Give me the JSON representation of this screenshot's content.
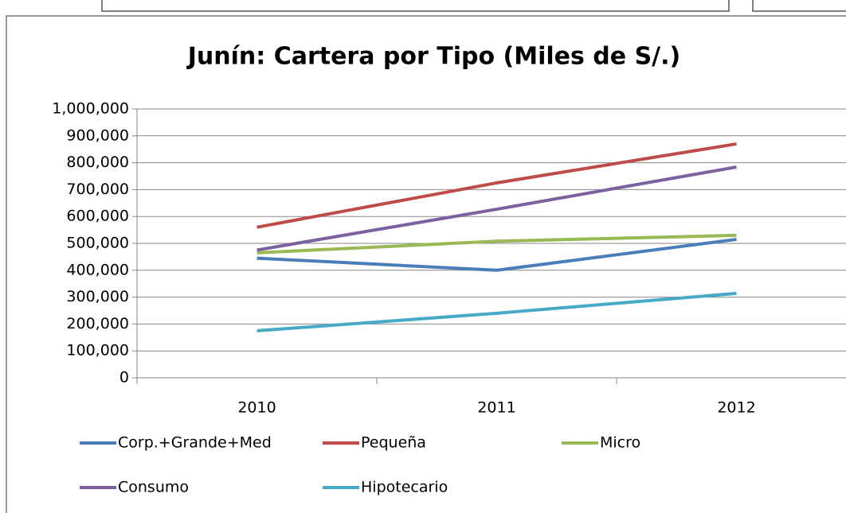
{
  "chart_data": {
    "type": "line",
    "title": "Junín: Cartera por Tipo (Miles de S/.)",
    "categories": [
      "2010",
      "2011",
      "2012"
    ],
    "series": [
      {
        "name": "Corp.+Grande+Med",
        "color": "#4a7ebb",
        "values": [
          445000,
          400000,
          515000
        ]
      },
      {
        "name": "Pequeña",
        "color": "#be4b48",
        "values": [
          560000,
          725000,
          870000
        ]
      },
      {
        "name": "Micro",
        "color": "#98b954",
        "values": [
          465000,
          508000,
          530000
        ]
      },
      {
        "name": "Consumo",
        "color": "#7d60a0",
        "values": [
          475000,
          627000,
          784000
        ]
      },
      {
        "name": "Hipotecario",
        "color": "#46aac5",
        "values": [
          175000,
          240000,
          314000
        ]
      }
    ],
    "ylim": [
      0,
      1000000
    ],
    "yticks": [
      0,
      {
        "value": 100000,
        "label": "100,000"
      },
      {
        "value": 200000,
        "label": "200,000"
      },
      {
        "value": 300000,
        "label": "300,000"
      },
      {
        "value": 400000,
        "label": "400,000"
      },
      {
        "value": 500000,
        "label": "500,000"
      },
      {
        "value": 600000,
        "label": "600,000"
      },
      {
        "value": 700000,
        "label": "700,000"
      },
      {
        "value": 800000,
        "label": "800,000"
      },
      {
        "value": 900000,
        "label": "900,000"
      },
      {
        "value": 1000000,
        "label": "1,000,000"
      }
    ],
    "grid": true,
    "legend": "bottom"
  }
}
